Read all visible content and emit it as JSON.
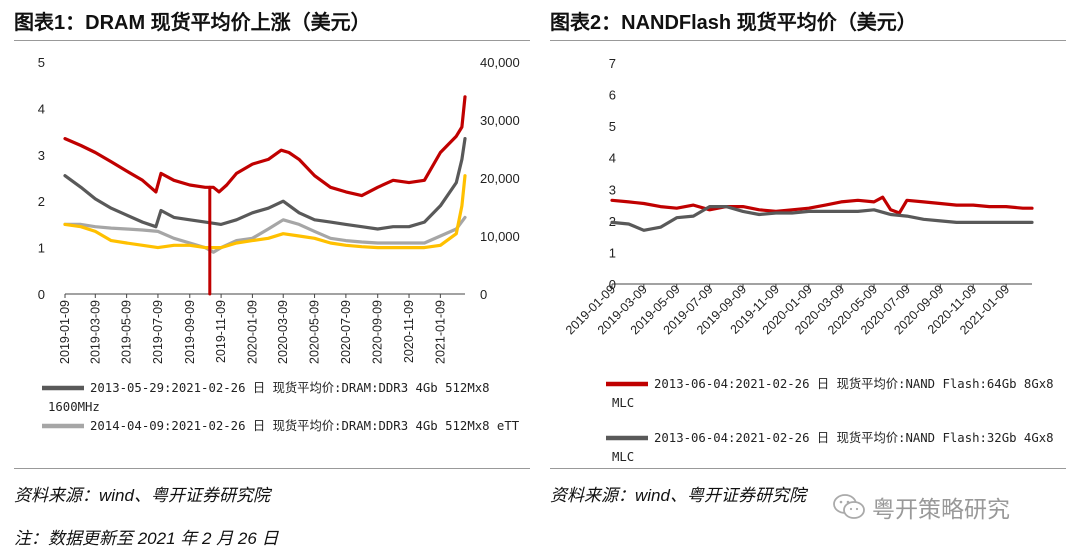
{
  "left_title": "图表1：DRAM 现货平均价上涨（美元）",
  "right_title": "图表2：NANDFlash 现货平均价（美元）",
  "left_source": "资料来源：wind、粤开证券研究院",
  "right_source": "资料来源：wind、粤开证券研究院",
  "note": "注：数据更新至 2021 年 2 月 26 日",
  "watermark": "粤开策略研究",
  "chart_data": [
    {
      "type": "line",
      "title": "图表1：DRAM 现货平均价上涨（美元）",
      "x_type": "date",
      "x_ticks": [
        "2019-01-09",
        "2019-03-09",
        "2019-05-09",
        "2019-07-09",
        "2019-09-09",
        "2019-11-09",
        "2020-01-09",
        "2020-03-09",
        "2020-05-09",
        "2020-07-09",
        "2020-09-09",
        "2020-11-09",
        "2021-01-09"
      ],
      "xlim": [
        "2019-01-09",
        "2021-02-26"
      ],
      "ylim_left": [
        0,
        5
      ],
      "ylim_right": [
        0,
        40000
      ],
      "yticks_left": [
        "0",
        "1",
        "2",
        "3",
        "4",
        "5"
      ],
      "yticks_right": [
        "0",
        "10,000",
        "20,000",
        "30,000",
        "40,000"
      ],
      "grid": false,
      "legend_position": "bottom",
      "series": [
        {
          "name": "",
          "axis": "left",
          "color": "#c00000",
          "x": [
            "2019-01-09",
            "2019-02-09",
            "2019-03-09",
            "2019-04-09",
            "2019-05-09",
            "2019-06-09",
            "2019-07-05",
            "2019-07-15",
            "2019-08-09",
            "2019-09-09",
            "2019-10-09",
            "2019-10-25",
            "2019-11-05",
            "2019-11-20",
            "2019-12-09",
            "2020-01-09",
            "2020-02-09",
            "2020-03-05",
            "2020-03-20",
            "2020-04-09",
            "2020-05-09",
            "2020-06-09",
            "2020-07-09",
            "2020-08-09",
            "2020-09-09",
            "2020-10-09",
            "2020-11-09",
            "2020-12-09",
            "2021-01-09",
            "2021-02-09",
            "2021-02-20",
            "2021-02-26"
          ],
          "y": [
            3.35,
            3.2,
            3.05,
            2.85,
            2.65,
            2.45,
            2.2,
            2.6,
            2.45,
            2.35,
            2.3,
            2.3,
            2.2,
            2.35,
            2.6,
            2.8,
            2.9,
            3.1,
            3.05,
            2.9,
            2.55,
            2.3,
            2.2,
            2.12,
            2.3,
            2.45,
            2.4,
            2.45,
            3.05,
            3.4,
            3.6,
            4.25
          ]
        },
        {
          "name": "2013-05-29:2021-02-26 日 现货平均价:DRAM:DDR3 4Gb 512Mx8 1600MHz",
          "axis": "left",
          "color": "#595959",
          "x": [
            "2019-01-09",
            "2019-02-09",
            "2019-03-09",
            "2019-04-09",
            "2019-05-09",
            "2019-06-09",
            "2019-07-05",
            "2019-07-15",
            "2019-08-09",
            "2019-09-09",
            "2019-10-09",
            "2019-11-09",
            "2019-12-09",
            "2020-01-09",
            "2020-02-09",
            "2020-03-09",
            "2020-04-09",
            "2020-05-09",
            "2020-06-09",
            "2020-07-09",
            "2020-08-09",
            "2020-09-09",
            "2020-10-09",
            "2020-11-09",
            "2020-12-09",
            "2021-01-09",
            "2021-02-09",
            "2021-02-20",
            "2021-02-26"
          ],
          "y": [
            2.55,
            2.3,
            2.05,
            1.85,
            1.7,
            1.55,
            1.45,
            1.8,
            1.65,
            1.6,
            1.55,
            1.5,
            1.6,
            1.75,
            1.85,
            2.0,
            1.75,
            1.6,
            1.55,
            1.5,
            1.45,
            1.4,
            1.45,
            1.45,
            1.55,
            1.9,
            2.4,
            2.9,
            3.35
          ]
        },
        {
          "name": "2014-04-09:2021-02-26 日 现货平均价:DRAM:DDR3 4Gb 512Mx8 eTT",
          "axis": "left",
          "color": "#a6a6a6",
          "x": [
            "2019-01-09",
            "2019-02-09",
            "2019-03-09",
            "2019-04-09",
            "2019-05-09",
            "2019-06-09",
            "2019-07-09",
            "2019-08-09",
            "2019-09-09",
            "2019-10-09",
            "2019-10-25",
            "2019-11-09",
            "2019-12-09",
            "2020-01-09",
            "2020-02-09",
            "2020-03-09",
            "2020-04-09",
            "2020-05-09",
            "2020-06-09",
            "2020-07-09",
            "2020-08-09",
            "2020-09-09",
            "2020-10-09",
            "2020-11-09",
            "2020-12-09",
            "2021-01-09",
            "2021-02-09",
            "2021-02-26"
          ],
          "y": [
            1.5,
            1.5,
            1.45,
            1.42,
            1.4,
            1.38,
            1.35,
            1.2,
            1.1,
            1.0,
            0.9,
            1.0,
            1.15,
            1.2,
            1.4,
            1.6,
            1.5,
            1.35,
            1.2,
            1.15,
            1.12,
            1.1,
            1.1,
            1.1,
            1.1,
            1.25,
            1.4,
            1.65
          ]
        },
        {
          "name": "",
          "axis": "left",
          "color": "#ffc000",
          "x": [
            "2019-01-09",
            "2019-02-09",
            "2019-03-09",
            "2019-04-09",
            "2019-05-09",
            "2019-06-09",
            "2019-07-09",
            "2019-08-09",
            "2019-09-09",
            "2019-10-09",
            "2019-11-09",
            "2019-12-09",
            "2020-01-09",
            "2020-02-09",
            "2020-03-09",
            "2020-04-09",
            "2020-05-09",
            "2020-06-09",
            "2020-07-09",
            "2020-08-09",
            "2020-09-09",
            "2020-10-09",
            "2020-11-09",
            "2020-12-09",
            "2021-01-09",
            "2021-02-09",
            "2021-02-20",
            "2021-02-26"
          ],
          "y": [
            1.5,
            1.45,
            1.35,
            1.15,
            1.1,
            1.05,
            1.0,
            1.05,
            1.05,
            1.0,
            1.0,
            1.1,
            1.15,
            1.2,
            1.3,
            1.25,
            1.2,
            1.1,
            1.05,
            1.02,
            1.0,
            1.0,
            1.0,
            1.0,
            1.05,
            1.3,
            1.9,
            2.55
          ]
        },
        {
          "name": "",
          "axis": "left",
          "color": "#c00000",
          "style": "spike",
          "x": [
            "2019-10-18",
            "2019-10-18"
          ],
          "y": [
            2.3,
            0
          ]
        }
      ]
    },
    {
      "type": "line",
      "title": "图表2：NANDFlash 现货平均价（美元）",
      "x_type": "date",
      "x_ticks": [
        "2019-01-09",
        "2019-03-09",
        "2019-05-09",
        "2019-07-09",
        "2019-09-09",
        "2019-11-09",
        "2020-01-09",
        "2020-03-09",
        "2020-05-09",
        "2020-07-09",
        "2020-09-09",
        "2020-11-09",
        "2021-01-09"
      ],
      "xlim": [
        "2019-01-09",
        "2021-02-26"
      ],
      "ylim": [
        0,
        7
      ],
      "yticks": [
        "0",
        "1",
        "2",
        "3",
        "4",
        "5",
        "6",
        "7"
      ],
      "grid": false,
      "legend_position": "bottom",
      "series": [
        {
          "name": "2013-06-04:2021-02-26 日 现货平均价:NAND Flash:64Gb 8Gx8 MLC",
          "color": "#c00000",
          "x": [
            "2019-01-09",
            "2019-02-09",
            "2019-03-09",
            "2019-04-09",
            "2019-05-09",
            "2019-06-09",
            "2019-07-09",
            "2019-08-09",
            "2019-09-09",
            "2019-10-09",
            "2019-11-09",
            "2019-12-09",
            "2020-01-09",
            "2020-02-09",
            "2020-03-09",
            "2020-04-09",
            "2020-05-09",
            "2020-05-25",
            "2020-06-09",
            "2020-06-25",
            "2020-07-09",
            "2020-08-09",
            "2020-09-09",
            "2020-10-09",
            "2020-11-09",
            "2020-12-09",
            "2021-01-09",
            "2021-02-09",
            "2021-02-26"
          ],
          "y": [
            2.65,
            2.6,
            2.55,
            2.45,
            2.4,
            2.5,
            2.35,
            2.45,
            2.45,
            2.35,
            2.3,
            2.35,
            2.4,
            2.5,
            2.6,
            2.65,
            2.6,
            2.75,
            2.35,
            2.25,
            2.65,
            2.6,
            2.55,
            2.5,
            2.5,
            2.45,
            2.45,
            2.4,
            2.4
          ]
        },
        {
          "name": "2013-06-04:2021-02-26 日 现货平均价:NAND Flash:32Gb 4Gx8 MLC",
          "color": "#595959",
          "x": [
            "2019-01-09",
            "2019-02-09",
            "2019-03-09",
            "2019-04-09",
            "2019-05-09",
            "2019-06-09",
            "2019-07-09",
            "2019-08-09",
            "2019-09-09",
            "2019-10-09",
            "2019-11-09",
            "2019-12-09",
            "2020-01-09",
            "2020-02-09",
            "2020-03-09",
            "2020-04-09",
            "2020-05-09",
            "2020-06-09",
            "2020-07-09",
            "2020-08-09",
            "2020-09-09",
            "2020-10-09",
            "2020-11-09",
            "2020-12-09",
            "2021-01-09",
            "2021-02-09",
            "2021-02-26"
          ],
          "y": [
            1.95,
            1.9,
            1.7,
            1.8,
            2.1,
            2.15,
            2.45,
            2.45,
            2.3,
            2.2,
            2.25,
            2.25,
            2.3,
            2.3,
            2.3,
            2.3,
            2.35,
            2.2,
            2.15,
            2.05,
            2.0,
            1.95,
            1.95,
            1.95,
            1.95,
            1.95,
            1.95
          ]
        }
      ]
    }
  ]
}
